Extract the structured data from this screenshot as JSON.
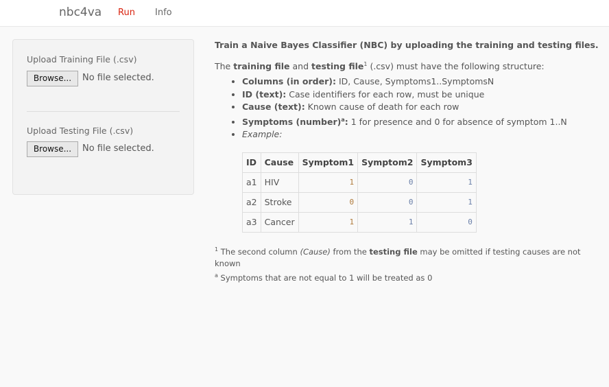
{
  "nav": {
    "brand": "nbc4va",
    "items": [
      {
        "label": "Run",
        "active": true
      },
      {
        "label": "Info",
        "active": false
      }
    ],
    "active_color": "#d9230f"
  },
  "sidebar": {
    "training": {
      "label": "Upload Training File (.csv)",
      "button": "Browse...",
      "status": "No file selected."
    },
    "testing": {
      "label": "Upload Testing File (.csv)",
      "button": "Browse...",
      "status": "No file selected."
    }
  },
  "main": {
    "title": "Train a Naive Bayes Classifier (NBC) by uploading the training and testing files.",
    "intro": {
      "t1": "The ",
      "b1": "training file",
      "t2": " and ",
      "b2": "testing file",
      "sup": "1",
      "t3": " (.csv) must have the following structure:"
    },
    "bullets": [
      {
        "b": "Columns (in order):",
        "t": " ID, Cause, Symptoms1..SymptomsN"
      },
      {
        "b": "ID (text):",
        "t": " Case identifiers for each row, must be unique"
      },
      {
        "b": "Cause (text):",
        "t": " Known cause of death for each row"
      },
      {
        "b": "Symptoms (number)",
        "sup": "a",
        "b2": ":",
        "t": " 1 for presence and 0 for absence of symptom 1..N"
      }
    ],
    "example": "Example:",
    "table": {
      "headers": [
        "ID",
        "Cause",
        "Symptom1",
        "Symptom2",
        "Symptom3"
      ],
      "rows": [
        [
          "a1",
          "HIV",
          "1",
          "0",
          "1"
        ],
        [
          "a2",
          "Stroke",
          "0",
          "0",
          "1"
        ],
        [
          "a3",
          "Cancer",
          "1",
          "1",
          "0"
        ]
      ]
    },
    "footnote1": {
      "sup": "1",
      "t1": " The second column ",
      "i": "(Cause)",
      "t2": " from the ",
      "b": "testing file",
      "t3": " may be omitted if testing causes are not known"
    },
    "footnote2": {
      "sup": "a",
      "t": " Symptoms that are not equal to 1 will be treated as 0"
    }
  }
}
